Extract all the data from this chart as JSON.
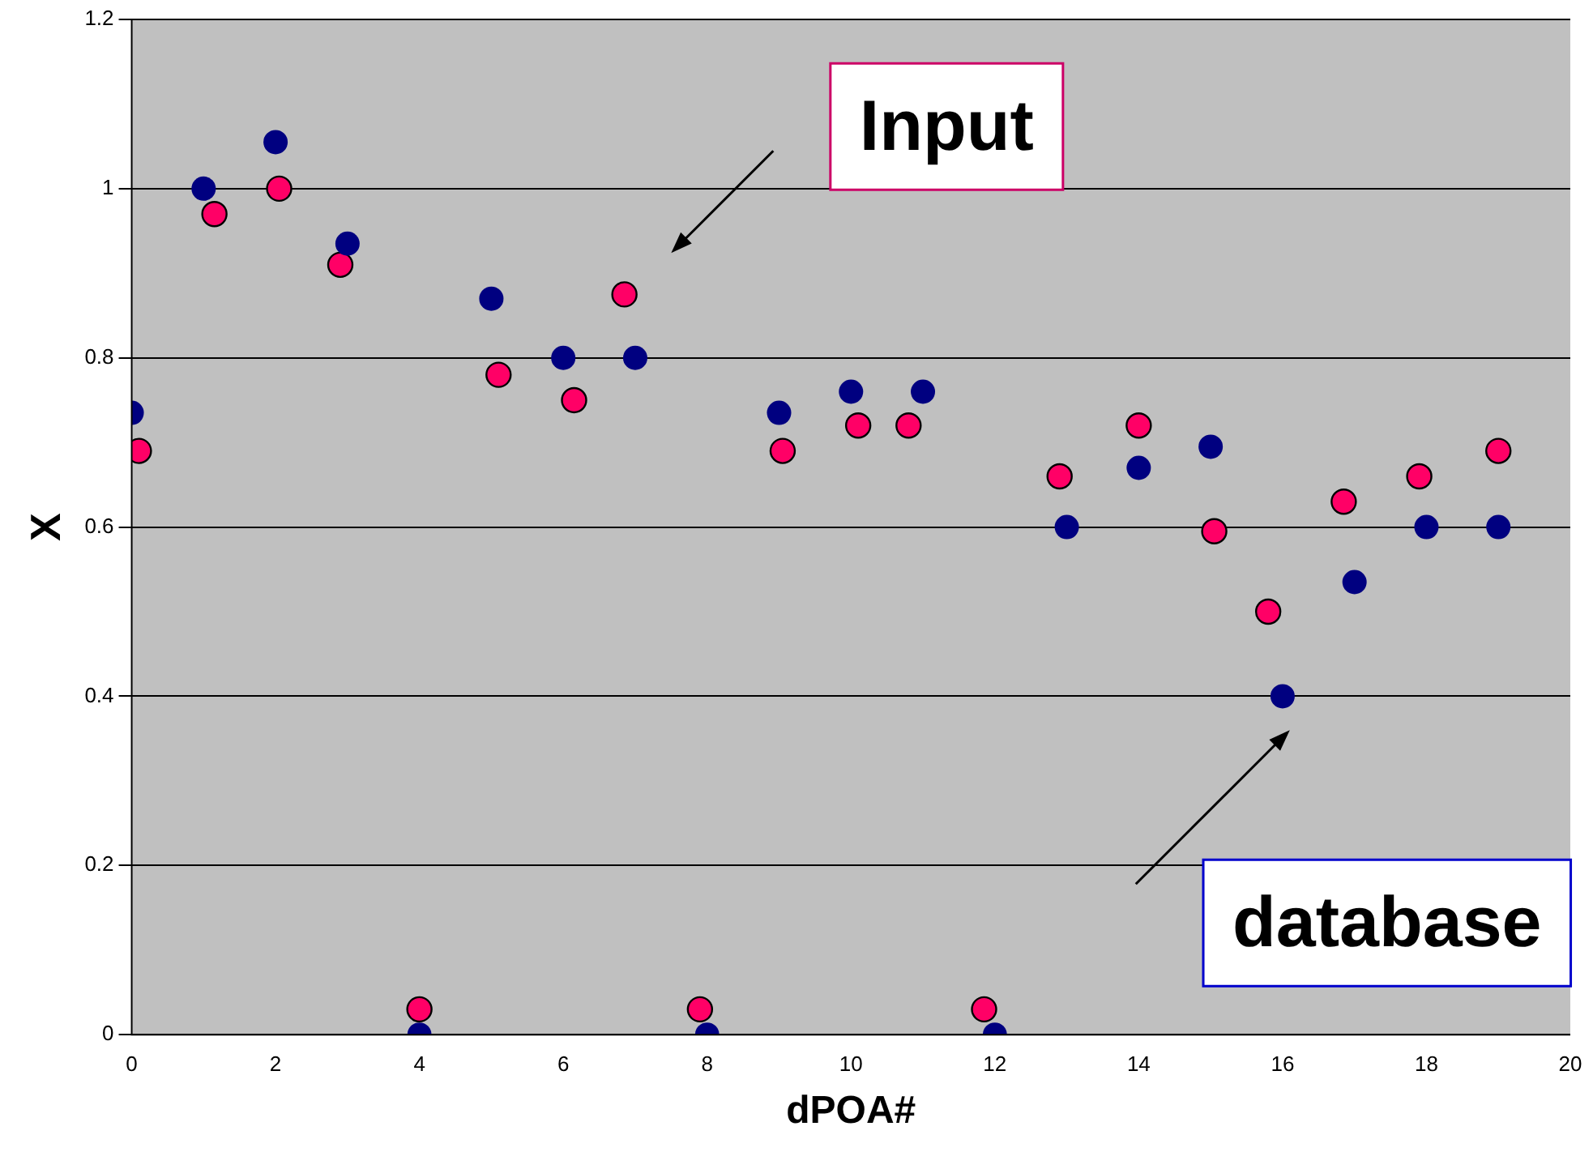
{
  "chart_data": {
    "type": "scatter",
    "xlabel": "dPOA#",
    "ylabel": "X",
    "xlim": [
      0,
      20
    ],
    "xticks": [
      0,
      2,
      4,
      6,
      8,
      10,
      12,
      14,
      16,
      18,
      20
    ],
    "ylim": [
      0,
      1.2
    ],
    "yticks": [
      0,
      0.2,
      0.4,
      0.6,
      0.8,
      1,
      1.2
    ],
    "grid": "y",
    "legend": false,
    "marker": "circle",
    "series": [
      {
        "color": "#000080",
        "x": [
          0,
          1,
          2,
          3,
          4,
          5,
          6,
          7,
          8,
          9,
          10,
          11,
          12,
          13,
          14,
          15,
          16,
          17,
          18,
          19
        ],
        "values": [
          0.735,
          1.0,
          1.055,
          0.935,
          0,
          0.87,
          0.8,
          0.8,
          0,
          0.735,
          0.76,
          0.76,
          0,
          0.6,
          0.67,
          0.695,
          0.4,
          0.535,
          0.6,
          0.6
        ]
      },
      {
        "color": "#ff0066",
        "x": [
          0.1,
          1.15,
          2.05,
          2.9,
          4,
          5.1,
          6.15,
          6.85,
          7.9,
          9.05,
          10.1,
          10.8,
          11.85,
          12.9,
          14,
          15.05,
          15.8,
          16.85,
          17.9,
          19
        ],
        "values": [
          0.69,
          0.97,
          1.0,
          0.91,
          0.03,
          0.78,
          0.75,
          0.875,
          0.03,
          0.69,
          0.72,
          0.72,
          0.03,
          0.66,
          0.72,
          0.595,
          0.5,
          0.63,
          0.66,
          0.69
        ]
      }
    ],
    "annotations": [
      "Input",
      "database"
    ]
  }
}
